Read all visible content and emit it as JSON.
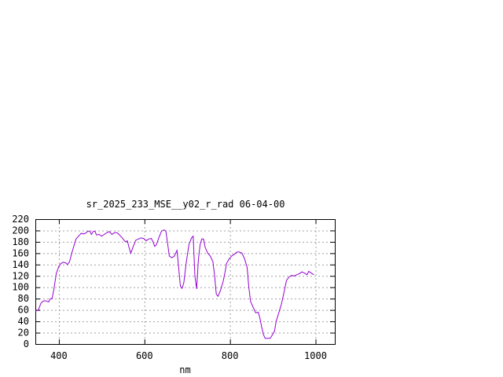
{
  "chart_data": {
    "type": "line",
    "title": "sr_2025_233_MSE__y02_r_rad 06-04-00",
    "xlabel": "nm",
    "ylabel": "",
    "xlim": [
      345,
      1045
    ],
    "ylim": [
      0,
      220
    ],
    "x_ticks": [
      400,
      600,
      800,
      1000
    ],
    "y_ticks": [
      0,
      20,
      40,
      60,
      80,
      100,
      120,
      140,
      160,
      180,
      200,
      220
    ],
    "grid": true,
    "series": [
      {
        "name": "",
        "color": "#9400d3",
        "points": [
          [
            345,
            58
          ],
          [
            352,
            60
          ],
          [
            358,
            72
          ],
          [
            364,
            76
          ],
          [
            370,
            76
          ],
          [
            376,
            74
          ],
          [
            380,
            80
          ],
          [
            384,
            80
          ],
          [
            388,
            95
          ],
          [
            394,
            125
          ],
          [
            400,
            137
          ],
          [
            405,
            142
          ],
          [
            410,
            144
          ],
          [
            416,
            143
          ],
          [
            420,
            140
          ],
          [
            425,
            145
          ],
          [
            430,
            160
          ],
          [
            436,
            175
          ],
          [
            440,
            185
          ],
          [
            446,
            190
          ],
          [
            452,
            195
          ],
          [
            458,
            194
          ],
          [
            464,
            196
          ],
          [
            468,
            199
          ],
          [
            472,
            199
          ],
          [
            476,
            193
          ],
          [
            480,
            198
          ],
          [
            484,
            199
          ],
          [
            488,
            192
          ],
          [
            494,
            193
          ],
          [
            500,
            190
          ],
          [
            506,
            193
          ],
          [
            512,
            196
          ],
          [
            518,
            198
          ],
          [
            524,
            193
          ],
          [
            530,
            196
          ],
          [
            536,
            196
          ],
          [
            542,
            192
          ],
          [
            548,
            187
          ],
          [
            552,
            183
          ],
          [
            556,
            180
          ],
          [
            560,
            182
          ],
          [
            564,
            170
          ],
          [
            568,
            160
          ],
          [
            574,
            172
          ],
          [
            580,
            183
          ],
          [
            586,
            185
          ],
          [
            592,
            187
          ],
          [
            598,
            186
          ],
          [
            604,
            182
          ],
          [
            610,
            185
          ],
          [
            616,
            186
          ],
          [
            620,
            180
          ],
          [
            624,
            172
          ],
          [
            628,
            175
          ],
          [
            634,
            188
          ],
          [
            640,
            199
          ],
          [
            646,
            201
          ],
          [
            650,
            199
          ],
          [
            654,
            178
          ],
          [
            658,
            155
          ],
          [
            664,
            152
          ],
          [
            670,
            155
          ],
          [
            676,
            165
          ],
          [
            680,
            135
          ],
          [
            684,
            102
          ],
          [
            688,
            98
          ],
          [
            692,
            108
          ],
          [
            698,
            145
          ],
          [
            704,
            175
          ],
          [
            710,
            187
          ],
          [
            714,
            190
          ],
          [
            718,
            120
          ],
          [
            722,
            97
          ],
          [
            726,
            148
          ],
          [
            730,
            175
          ],
          [
            734,
            185
          ],
          [
            738,
            185
          ],
          [
            742,
            170
          ],
          [
            748,
            160
          ],
          [
            754,
            155
          ],
          [
            760,
            145
          ],
          [
            764,
            120
          ],
          [
            768,
            88
          ],
          [
            772,
            84
          ],
          [
            778,
            95
          ],
          [
            784,
            110
          ],
          [
            788,
            125
          ],
          [
            792,
            142
          ],
          [
            798,
            150
          ],
          [
            804,
            155
          ],
          [
            810,
            158
          ],
          [
            816,
            162
          ],
          [
            822,
            162
          ],
          [
            828,
            160
          ],
          [
            834,
            150
          ],
          [
            840,
            135
          ],
          [
            844,
            100
          ],
          [
            848,
            75
          ],
          [
            854,
            65
          ],
          [
            860,
            55
          ],
          [
            866,
            56
          ],
          [
            870,
            45
          ],
          [
            874,
            30
          ],
          [
            878,
            17
          ],
          [
            882,
            10
          ],
          [
            888,
            10
          ],
          [
            894,
            10
          ],
          [
            898,
            15
          ],
          [
            904,
            23
          ],
          [
            908,
            40
          ],
          [
            914,
            55
          ],
          [
            920,
            70
          ],
          [
            926,
            90
          ],
          [
            932,
            112
          ],
          [
            938,
            118
          ],
          [
            944,
            121
          ],
          [
            950,
            120
          ],
          [
            956,
            122
          ],
          [
            962,
            124
          ],
          [
            968,
            127
          ],
          [
            974,
            125
          ],
          [
            980,
            122
          ],
          [
            984,
            128
          ],
          [
            988,
            126
          ],
          [
            992,
            124
          ],
          [
            996,
            122
          ]
        ]
      }
    ]
  }
}
